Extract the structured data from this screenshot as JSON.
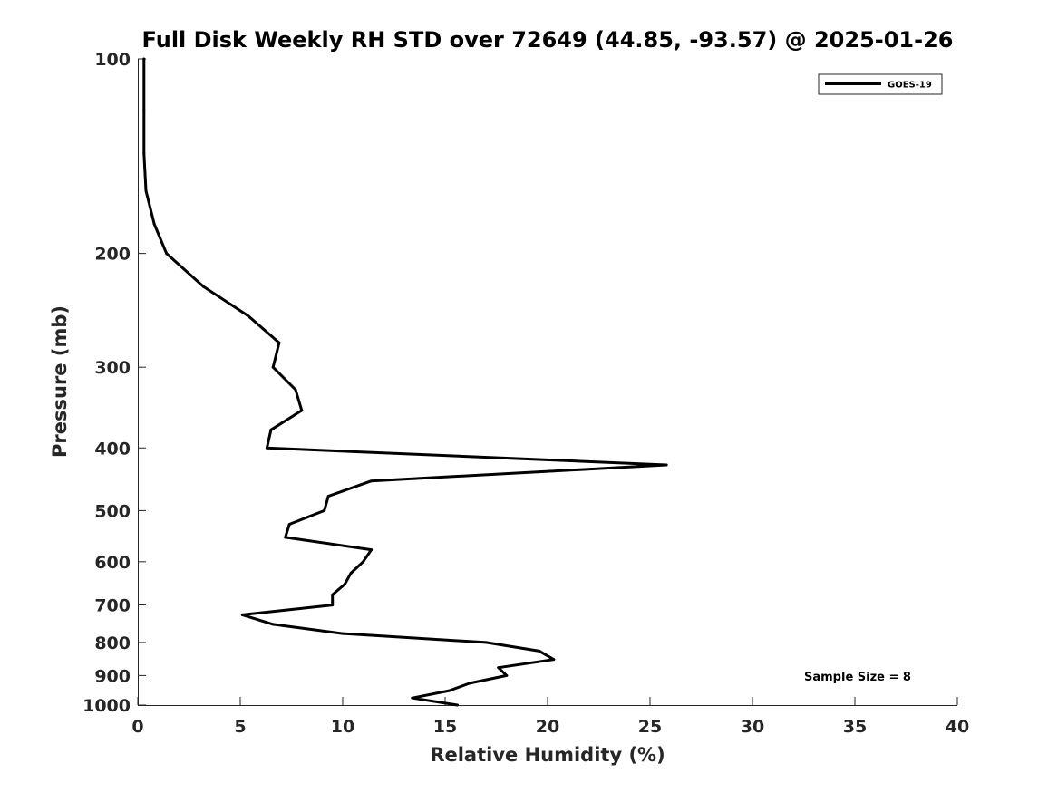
{
  "chart_data": {
    "type": "line",
    "title": "Full Disk Weekly RH STD over 72649 (44.85, -93.57) @ 2025-01-26",
    "xlabel": "Relative Humidity (%)",
    "ylabel": "Pressure (mb)",
    "xlim": [
      0,
      40
    ],
    "ylim": [
      100,
      1000
    ],
    "y_scale": "log",
    "y_reversed": true,
    "x_ticks": [
      0,
      5,
      10,
      15,
      20,
      25,
      30,
      35,
      40
    ],
    "x_tick_labels": [
      "0",
      "5",
      "10",
      "15",
      "20",
      "25",
      "30",
      "35",
      "40"
    ],
    "y_ticks": [
      100,
      200,
      300,
      400,
      500,
      600,
      700,
      800,
      900,
      1000
    ],
    "y_tick_labels": [
      "100",
      "200",
      "300",
      "400",
      "500",
      "600",
      "700",
      "800",
      "900",
      "1000"
    ],
    "grid": false,
    "legend_position": "top-right",
    "series": [
      {
        "name": "GOES-19",
        "color": "#000000",
        "points": [
          {
            "x": 0.3,
            "y": 100
          },
          {
            "x": 0.3,
            "y": 120
          },
          {
            "x": 0.3,
            "y": 140
          },
          {
            "x": 0.4,
            "y": 160
          },
          {
            "x": 0.8,
            "y": 180
          },
          {
            "x": 1.4,
            "y": 200
          },
          {
            "x": 3.2,
            "y": 225
          },
          {
            "x": 5.4,
            "y": 250
          },
          {
            "x": 6.9,
            "y": 275
          },
          {
            "x": 6.6,
            "y": 300
          },
          {
            "x": 7.7,
            "y": 325
          },
          {
            "x": 8.0,
            "y": 350
          },
          {
            "x": 6.5,
            "y": 375
          },
          {
            "x": 6.3,
            "y": 400
          },
          {
            "x": 25.8,
            "y": 425
          },
          {
            "x": 11.4,
            "y": 450
          },
          {
            "x": 9.3,
            "y": 475
          },
          {
            "x": 9.1,
            "y": 500
          },
          {
            "x": 7.4,
            "y": 525
          },
          {
            "x": 7.2,
            "y": 550
          },
          {
            "x": 11.4,
            "y": 575
          },
          {
            "x": 11.0,
            "y": 600
          },
          {
            "x": 10.4,
            "y": 625
          },
          {
            "x": 10.1,
            "y": 650
          },
          {
            "x": 9.5,
            "y": 675
          },
          {
            "x": 9.5,
            "y": 700
          },
          {
            "x": 5.1,
            "y": 725
          },
          {
            "x": 6.6,
            "y": 750
          },
          {
            "x": 10.0,
            "y": 775
          },
          {
            "x": 17.0,
            "y": 800
          },
          {
            "x": 19.6,
            "y": 825
          },
          {
            "x": 20.3,
            "y": 850
          },
          {
            "x": 17.6,
            "y": 875
          },
          {
            "x": 18.0,
            "y": 900
          },
          {
            "x": 16.2,
            "y": 925
          },
          {
            "x": 15.2,
            "y": 950
          },
          {
            "x": 13.4,
            "y": 975
          },
          {
            "x": 15.6,
            "y": 1000
          }
        ]
      }
    ],
    "annotation": "Sample Size = 8"
  }
}
